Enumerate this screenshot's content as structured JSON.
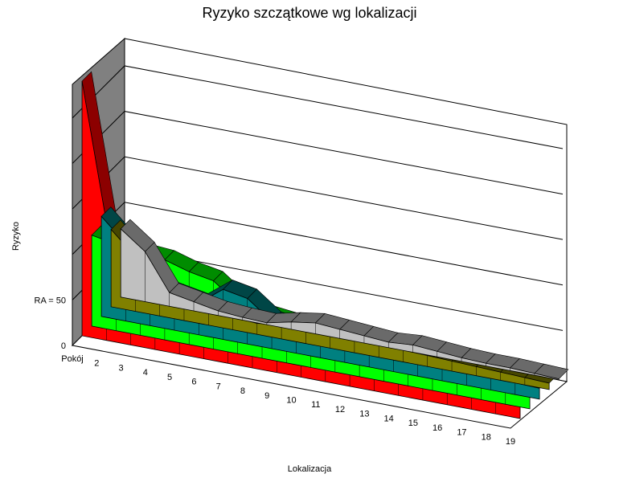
{
  "chart_data": {
    "type": "area",
    "title": "Ryzyko szczątkowe wg lokalizacji",
    "xlabel": "Lokalizacja",
    "ylabel": "Ryzyko",
    "categories": [
      "Pokój",
      "2",
      "3",
      "4",
      "5",
      "6",
      "7",
      "8",
      "9",
      "10",
      "11",
      "12",
      "13",
      "14",
      "15",
      "16",
      "17",
      "18",
      "19"
    ],
    "y_ticks": [
      {
        "label": "0",
        "value": 0
      },
      {
        "label": "RA = 50",
        "value": 50
      }
    ],
    "ylim": [
      0,
      280
    ],
    "grid": true,
    "series": [
      {
        "color": "#c0c0c0",
        "values": [
          75,
          55,
          15,
          10,
          5,
          3,
          2,
          8,
          12,
          10,
          8,
          6,
          8,
          6,
          4,
          3,
          3,
          2,
          1
        ]
      },
      {
        "color": "#808000",
        "values": [
          85,
          60,
          30,
          22,
          18,
          14,
          12,
          16,
          20,
          18,
          16,
          14,
          13,
          12,
          11,
          10,
          9,
          8,
          7
        ]
      },
      {
        "color": "#008080",
        "values": [
          110,
          85,
          45,
          40,
          35,
          55,
          50,
          30,
          27,
          25,
          23,
          22,
          20,
          19,
          17,
          16,
          14,
          13,
          12
        ]
      },
      {
        "color": "#00ff00",
        "values": [
          100,
          95,
          90,
          88,
          80,
          75,
          55,
          48,
          45,
          38,
          36,
          32,
          28,
          25,
          22,
          20,
          18,
          16,
          14
        ]
      },
      {
        "color": "#ff0000",
        "values": [
          280,
          130,
          100,
          90,
          72,
          70,
          50,
          45,
          42,
          38,
          34,
          30,
          27,
          24,
          22,
          20,
          18,
          17,
          16
        ]
      }
    ]
  }
}
